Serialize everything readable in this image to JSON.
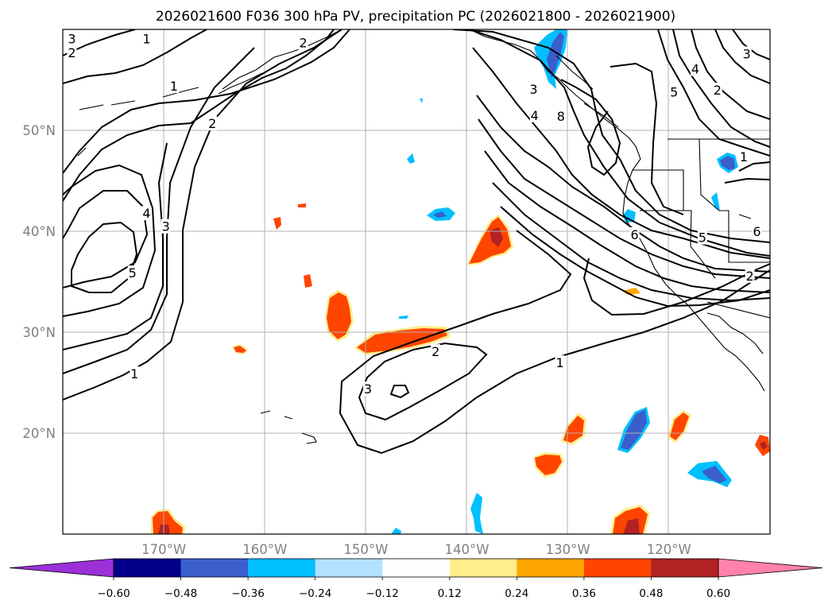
{
  "title": "2026021600 F036 300 hPa PV, precipitation PC (2026021800 - 2026021900)",
  "map": {
    "lon_range": [
      -180,
      -110
    ],
    "lat_range": [
      10,
      60
    ],
    "x_ticks": [
      {
        "lon": -170,
        "label": "170°W"
      },
      {
        "lon": -160,
        "label": "160°W"
      },
      {
        "lon": -150,
        "label": "150°W"
      },
      {
        "lon": -140,
        "label": "140°W"
      },
      {
        "lon": -130,
        "label": "130°W"
      },
      {
        "lon": -120,
        "label": "120°W"
      }
    ],
    "y_ticks": [
      {
        "lat": 20,
        "label": "20°N"
      },
      {
        "lat": 30,
        "label": "30°N"
      },
      {
        "lat": 40,
        "label": "40°N"
      },
      {
        "lat": 50,
        "label": "50°N"
      }
    ],
    "gridlines": true
  },
  "contour_labels": [
    {
      "text": "3",
      "lon": -179.1,
      "lat": 59.1
    },
    {
      "text": "2",
      "lon": -179.1,
      "lat": 57.7
    },
    {
      "text": "1",
      "lon": -171.7,
      "lat": 59.1
    },
    {
      "text": "2",
      "lon": -156.2,
      "lat": 58.7
    },
    {
      "text": "1",
      "lon": -169.0,
      "lat": 54.4
    },
    {
      "text": "2",
      "lon": -165.2,
      "lat": 50.7
    },
    {
      "text": "4",
      "lon": -171.7,
      "lat": 41.8
    },
    {
      "text": "3",
      "lon": -169.8,
      "lat": 40.5
    },
    {
      "text": "5",
      "lon": -173.1,
      "lat": 35.9
    },
    {
      "text": "1",
      "lon": -172.9,
      "lat": 25.9
    },
    {
      "text": "3",
      "lon": -133.4,
      "lat": 54.1
    },
    {
      "text": "4",
      "lon": -133.3,
      "lat": 51.5
    },
    {
      "text": "8",
      "lon": -130.7,
      "lat": 51.4
    },
    {
      "text": "6",
      "lon": -123.4,
      "lat": 39.7
    },
    {
      "text": "5",
      "lon": -116.7,
      "lat": 39.4
    },
    {
      "text": "6",
      "lon": -111.3,
      "lat": 40.0
    },
    {
      "text": "2",
      "lon": -112.0,
      "lat": 35.6
    },
    {
      "text": "1",
      "lon": -112.6,
      "lat": 47.4
    },
    {
      "text": "2",
      "lon": -115.2,
      "lat": 54.0
    },
    {
      "text": "3",
      "lon": -112.3,
      "lat": 57.6
    },
    {
      "text": "4",
      "lon": -117.4,
      "lat": 56.1
    },
    {
      "text": "5",
      "lon": -119.5,
      "lat": 53.8
    },
    {
      "text": "2",
      "lon": -143.1,
      "lat": 28.1
    },
    {
      "text": "1",
      "lon": -130.8,
      "lat": 27.0
    },
    {
      "text": "3",
      "lon": -149.8,
      "lat": 24.4
    }
  ],
  "colorbar": {
    "ticks": [
      "−0.60",
      "−0.48",
      "−0.36",
      "−0.24",
      "−0.12",
      "0.12",
      "0.24",
      "0.36",
      "0.48",
      "0.60"
    ],
    "under_color": "#9b30d9",
    "over_color": "#ff82aa",
    "colors": [
      "#00008b",
      "#3a5fcd",
      "#00bfff",
      "#b0e2ff",
      "#ffffff",
      "#ffec8b",
      "#ffa500",
      "#ff4500",
      "#b22222"
    ]
  }
}
